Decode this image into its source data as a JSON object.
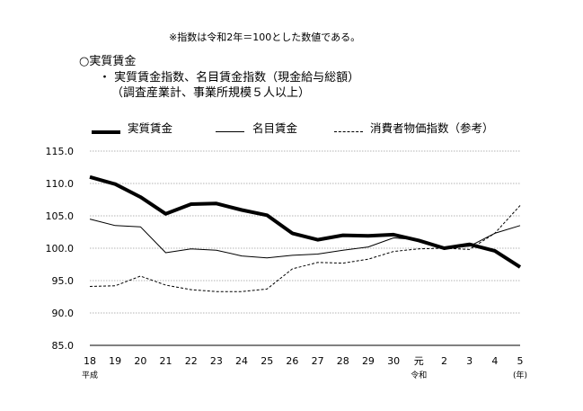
{
  "header": {
    "note": "※指数は令和2年＝100とした数値である。",
    "section_title": "○実質賃金",
    "subtitle_line1": "・ 実質賃金指数、名目賃金指数（現金給与総額）",
    "subtitle_line2": "（調査産業計、事業所規模５人以上）"
  },
  "chart_data": {
    "type": "line",
    "x": [
      "18",
      "19",
      "20",
      "21",
      "22",
      "23",
      "24",
      "25",
      "26",
      "27",
      "28",
      "29",
      "30",
      "元",
      "2",
      "3",
      "4",
      "5"
    ],
    "x_sublabels": {
      "18": "平成",
      "元": "令和",
      "5": "(年)"
    },
    "ylim": [
      85.0,
      115.0
    ],
    "yticks": [
      "115.0",
      "110.0",
      "105.0",
      "100.0",
      "95.0",
      "90.0",
      "85.0"
    ],
    "grid": true,
    "legend_position": "top",
    "series": [
      {
        "name": "実質賃金",
        "style": "thick-solid",
        "values": [
          111.0,
          109.9,
          107.9,
          105.3,
          106.8,
          106.9,
          105.9,
          105.1,
          102.3,
          101.3,
          102.0,
          101.9,
          102.1,
          101.2,
          100.0,
          100.6,
          99.6,
          97.1
        ]
      },
      {
        "name": "名目賃金",
        "style": "thin-solid",
        "values": [
          104.5,
          103.5,
          103.3,
          99.3,
          99.9,
          99.7,
          98.8,
          98.5,
          98.9,
          99.1,
          99.7,
          100.2,
          101.6,
          101.3,
          100.0,
          100.3,
          102.3,
          103.5
        ]
      },
      {
        "name": "消費者物価指数（参考）",
        "style": "dashed",
        "values": [
          94.1,
          94.2,
          95.7,
          94.3,
          93.6,
          93.3,
          93.3,
          93.7,
          96.8,
          97.8,
          97.7,
          98.3,
          99.5,
          99.9,
          100.0,
          99.8,
          102.3,
          106.6
        ]
      }
    ]
  }
}
